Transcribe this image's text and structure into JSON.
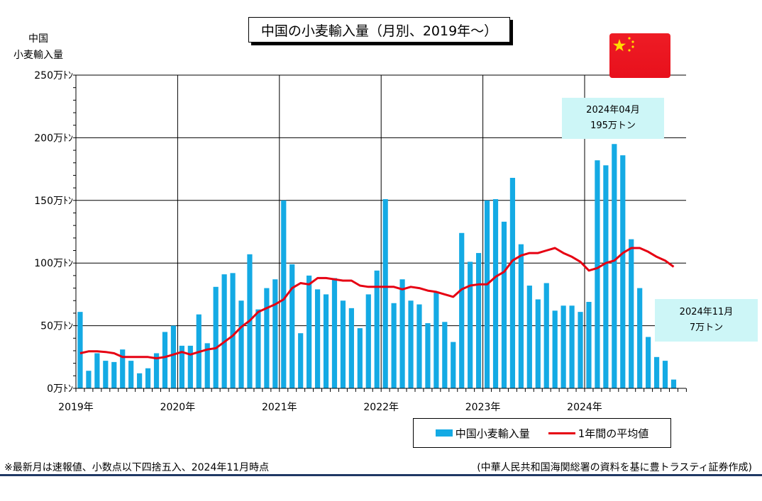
{
  "title": "中国の小麦輸入量（月別、2019年～）",
  "ylabel_lines": [
    "中国",
    "小麦輸入量"
  ],
  "legend": {
    "bar_label": "中国小麦輸入量",
    "line_label": "1年間の平均値"
  },
  "callout_peak": {
    "line1": "2024年04月",
    "line2": "195万トン"
  },
  "callout_latest": {
    "line1": "2024年11月",
    "line2": "7万トン"
  },
  "note": "※最新月は速報値、小数点以下四捨五入、2024年11月時点",
  "source": "(中華人民共和国海関総署の資料を基に豊トラスティ証券作成)",
  "colors": {
    "bar": "#14aae4",
    "line": "#e60012",
    "callout": "#cdf6f7",
    "flag": "#ee1c25",
    "star": "#ffde00",
    "rule": "#1f3864"
  },
  "chart_data": {
    "type": "bar",
    "unit": "万トン",
    "ylim": [
      0,
      250
    ],
    "y_ticks": [
      "0万ﾄﾝ",
      "50万ﾄﾝ",
      "100万ﾄﾝ",
      "150万ﾄﾝ",
      "200万ﾄﾝ",
      "250万ﾄﾝ"
    ],
    "x_ticks": [
      "2019年",
      "2020年",
      "2021年",
      "2022年",
      "2023年",
      "2024年"
    ],
    "grid": true,
    "series": [
      {
        "name": "中国小麦輸入量",
        "type": "bar",
        "values": [
          61,
          14,
          28,
          22,
          21,
          31,
          22,
          12,
          16,
          28,
          45,
          50,
          34,
          34,
          59,
          36,
          81,
          91,
          92,
          70,
          107,
          63,
          80,
          87,
          150,
          99,
          44,
          90,
          79,
          75,
          88,
          70,
          64,
          48,
          75,
          94,
          151,
          68,
          87,
          70,
          67,
          52,
          77,
          53,
          37,
          124,
          101,
          108,
          150,
          151,
          133,
          168,
          115,
          82,
          71,
          84,
          62,
          66,
          66,
          61,
          69,
          182,
          178,
          195,
          186,
          119,
          80,
          41,
          25,
          22,
          7
        ]
      },
      {
        "name": "1年間の平均値",
        "type": "line",
        "values": [
          28,
          29.5,
          29.5,
          29,
          28,
          25,
          25,
          25,
          25,
          24,
          25,
          27,
          29,
          27,
          29,
          31,
          32,
          37,
          42,
          49,
          54,
          61,
          64,
          67,
          71,
          80,
          84,
          83,
          88,
          88,
          87,
          86,
          86,
          82,
          81,
          81,
          81,
          81,
          79,
          81,
          80,
          78,
          77,
          75,
          73,
          79,
          82,
          83,
          83,
          89,
          93,
          102,
          106,
          108,
          108,
          110,
          112,
          108,
          105,
          101,
          94,
          96,
          100,
          102,
          108,
          112,
          112,
          109,
          105,
          102,
          97
        ]
      }
    ]
  }
}
